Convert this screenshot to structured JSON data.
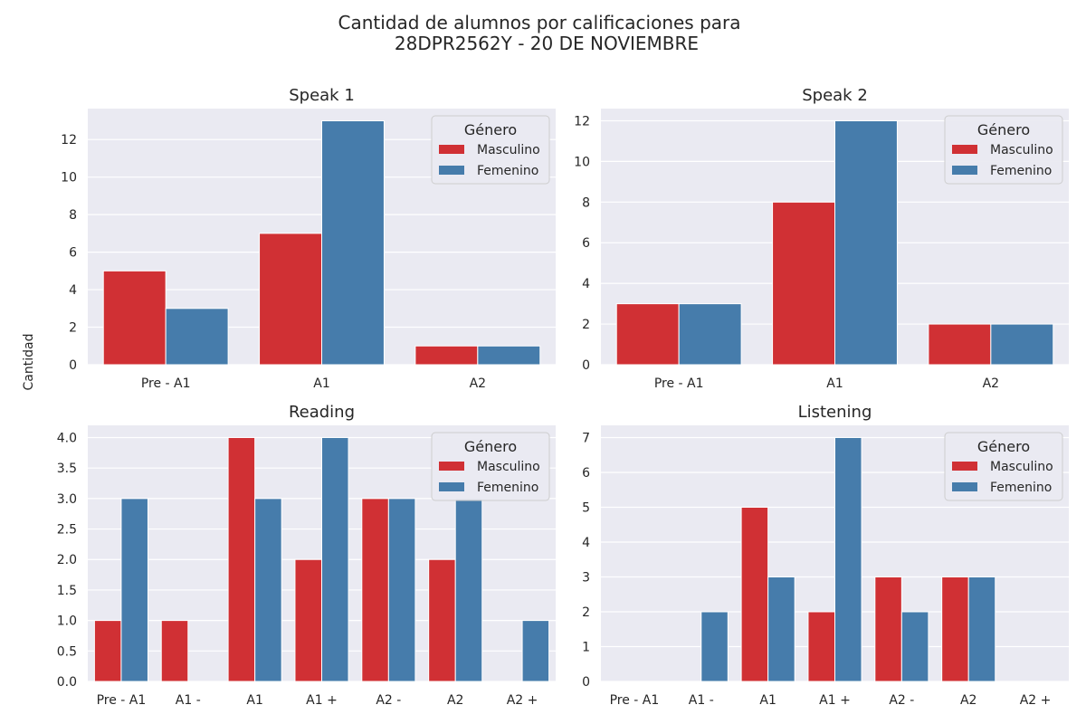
{
  "suptitle": {
    "line1": "Cantidad de alumnos por calificaciones para",
    "line2": "28DPR2562Y - 20 DE NOVIEMBRE"
  },
  "shared_ylabel": "Cantidad",
  "colors": {
    "Masculino": "#d03034",
    "Femenino": "#467cab",
    "background": "#eaeaf2",
    "grid": "#ffffff"
  },
  "chart_data": [
    {
      "type": "bar",
      "title": "Speak 1",
      "categories": [
        "Pre - A1",
        "A1",
        "A2"
      ],
      "series": [
        {
          "name": "Masculino",
          "values": [
            5,
            7,
            1
          ]
        },
        {
          "name": "Femenino",
          "values": [
            3,
            13,
            1
          ]
        }
      ],
      "yticks": [
        "0",
        "2",
        "4",
        "6",
        "8",
        "10",
        "12"
      ],
      "ylim": [
        0,
        13.65
      ],
      "legend": {
        "title": "Género",
        "placement": "top-right"
      },
      "grid": true
    },
    {
      "type": "bar",
      "title": "Speak 2",
      "categories": [
        "Pre - A1",
        "A1",
        "A2"
      ],
      "series": [
        {
          "name": "Masculino",
          "values": [
            3,
            8,
            2
          ]
        },
        {
          "name": "Femenino",
          "values": [
            3,
            12,
            2
          ]
        }
      ],
      "yticks": [
        "0",
        "2",
        "4",
        "6",
        "8",
        "10",
        "12"
      ],
      "ylim": [
        0,
        12.6
      ],
      "legend": {
        "title": "Género",
        "placement": "top-right"
      },
      "grid": true
    },
    {
      "type": "bar",
      "title": "Reading",
      "categories": [
        "Pre - A1",
        "A1 -",
        "A1",
        "A1 +",
        "A2 -",
        "A2",
        "A2 +"
      ],
      "series": [
        {
          "name": "Masculino",
          "values": [
            1,
            1,
            4,
            2,
            3,
            2,
            0
          ]
        },
        {
          "name": "Femenino",
          "values": [
            3,
            0,
            3,
            4,
            3,
            3,
            1
          ]
        }
      ],
      "yticks": [
        "0.0",
        "0.5",
        "1.0",
        "1.5",
        "2.0",
        "2.5",
        "3.0",
        "3.5",
        "4.0"
      ],
      "ylim": [
        0,
        4.2
      ],
      "legend": {
        "title": "Género",
        "placement": "top-right"
      },
      "grid": true
    },
    {
      "type": "bar",
      "title": "Listening",
      "categories": [
        "Pre - A1",
        "A1 -",
        "A1",
        "A1 +",
        "A2 -",
        "A2",
        "A2 +"
      ],
      "series": [
        {
          "name": "Masculino",
          "values": [
            0,
            0,
            5,
            2,
            3,
            3,
            0
          ]
        },
        {
          "name": "Femenino",
          "values": [
            0,
            2,
            3,
            7,
            2,
            3,
            0
          ]
        }
      ],
      "yticks": [
        "0",
        "1",
        "2",
        "3",
        "4",
        "5",
        "6",
        "7"
      ],
      "ylim": [
        0,
        7.35
      ],
      "legend": {
        "title": "Género",
        "placement": "top-right"
      },
      "grid": true
    }
  ]
}
